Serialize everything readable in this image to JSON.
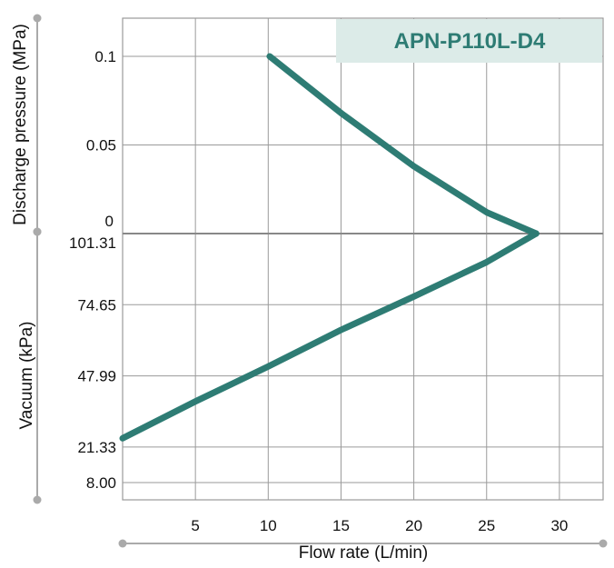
{
  "chart_data": {
    "type": "line",
    "title": "APN-P110L-D4",
    "xlabel": "Flow rate (L/min)",
    "ylabel_top": "Discharge pressure (MPa)",
    "ylabel_bottom": "Vacuum (kPa)",
    "xlim": [
      0,
      33
    ],
    "x_ticks": [
      5,
      10,
      15,
      20,
      25,
      30
    ],
    "pressure_ticks": [
      "0.1",
      "0.05",
      "0"
    ],
    "vacuum_ticks": [
      "101.31",
      "74.65",
      "47.99",
      "21.33",
      "8.00"
    ],
    "grid": true,
    "series": [
      {
        "section": "pressure",
        "color": "#2e7c74",
        "points": [
          [
            10.1,
            0.1
          ],
          [
            15,
            0.068
          ],
          [
            20,
            0.038
          ],
          [
            25,
            0.012
          ],
          [
            28.4,
            0.0
          ]
        ]
      },
      {
        "section": "vacuum",
        "color": "#2e7c74",
        "points": [
          [
            28.4,
            101.31
          ],
          [
            25,
            90.6
          ],
          [
            20,
            77.7
          ],
          [
            15,
            65.2
          ],
          [
            10,
            51.5
          ],
          [
            5,
            38.4
          ],
          [
            0,
            24.6
          ]
        ]
      }
    ]
  },
  "colors": {
    "curve": "#2e7c74",
    "title_box": "#dcebe8",
    "title_text": "#2e7c74",
    "grid": "#9a9a9a",
    "bracket": "#aaaaaa"
  }
}
